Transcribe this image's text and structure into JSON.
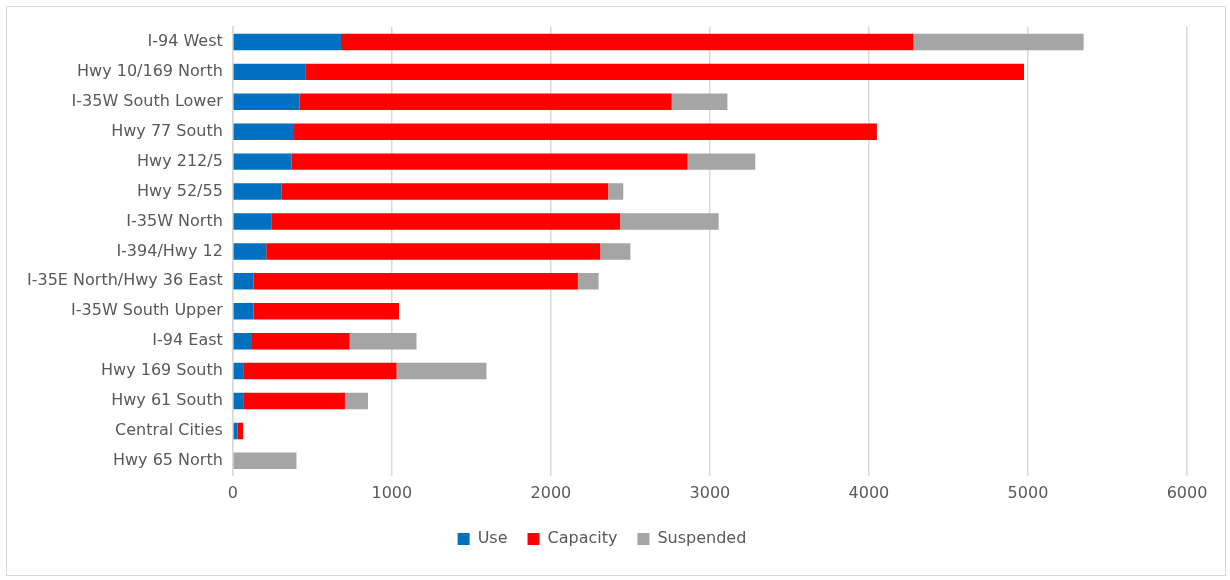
{
  "chart_data": {
    "type": "bar",
    "orientation": "horizontal",
    "stacked": true,
    "categories": [
      "I-94 West",
      "Hwy 10/169 North",
      "I-35W South Lower",
      "Hwy 77 South",
      "Hwy 212/5",
      "Hwy 52/55",
      "I-35W North",
      "I-394/Hwy 12",
      "I-35E North/Hwy 36 East",
      "I-35W South Upper",
      "I-94 East",
      "Hwy 169 South",
      "Hwy 61 South",
      "Central Cities",
      "Hwy 65 North"
    ],
    "series": [
      {
        "name": "Use",
        "color": "#0070c0",
        "values": [
          680,
          455,
          420,
          385,
          370,
          305,
          245,
          210,
          130,
          130,
          115,
          65,
          65,
          30,
          0
        ]
      },
      {
        "name": "Capacity",
        "color": "#ff0000",
        "values": [
          3600,
          4520,
          2340,
          3665,
          2490,
          2055,
          2190,
          2100,
          2040,
          915,
          620,
          965,
          640,
          35,
          0
        ]
      },
      {
        "name": "Suspended",
        "color": "#a5a5a5",
        "values": [
          1070,
          0,
          350,
          0,
          425,
          95,
          620,
          190,
          130,
          0,
          420,
          565,
          145,
          0,
          400
        ]
      }
    ],
    "xlim": [
      0,
      6000
    ],
    "xticks": [
      0,
      1000,
      2000,
      3000,
      4000,
      5000,
      6000
    ],
    "grid": "x",
    "legend": "bottom"
  }
}
